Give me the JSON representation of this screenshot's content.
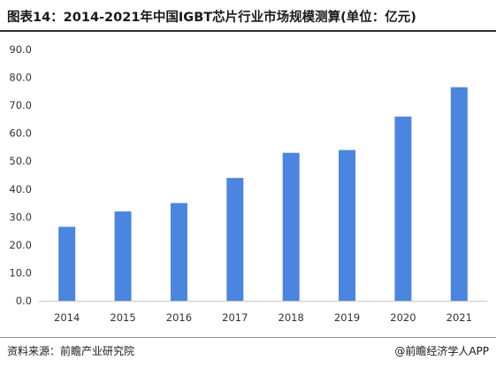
{
  "title": "图表14：2014-2021年中国IGBT芯片行业市场规模测算(单位：亿元)",
  "source": "资料来源：前瞻产业研究院",
  "brand": "@前瞻经济学人APP",
  "colors": {
    "bar": "#4a86e0",
    "axis": "#c8c8c8"
  },
  "chart_data": {
    "type": "bar",
    "title": "图表14：2014-2021年中国IGBT芯片行业市场规模测算(单位：亿元)",
    "categories": [
      "2014",
      "2015",
      "2016",
      "2017",
      "2018",
      "2019",
      "2020",
      "2021"
    ],
    "values": [
      26.5,
      32,
      35,
      44,
      53,
      54,
      66,
      76.5
    ],
    "yticks": [
      "0.0",
      "10.0",
      "20.0",
      "30.0",
      "40.0",
      "50.0",
      "60.0",
      "70.0",
      "80.0",
      "90.0"
    ],
    "ylim": [
      0,
      90
    ],
    "xlabel": "",
    "ylabel": "",
    "grid": false,
    "legend": "none"
  }
}
